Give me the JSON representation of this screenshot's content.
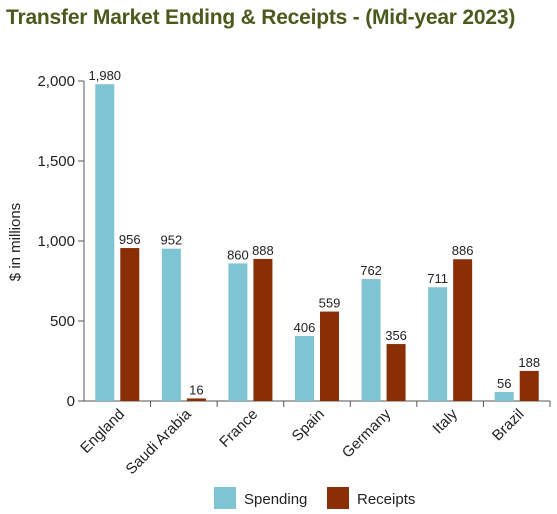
{
  "chart_data": {
    "type": "bar",
    "title": "Transfer Market Ending & Receipts - (Mid-year 2023)",
    "ylabel": "$ in millions",
    "xlabel": "",
    "ylim": [
      0,
      2000
    ],
    "yticks": [
      0,
      500,
      1000,
      1500,
      2000
    ],
    "ytick_labels": [
      "0",
      "500",
      "1,000",
      "1,500",
      "2,000"
    ],
    "categories": [
      "England",
      "Saudi Arabia",
      "France",
      "Spain",
      "Germany",
      "Italy",
      "Brazil"
    ],
    "series": [
      {
        "name": "Spending",
        "color": "#7ec4d3",
        "values": [
          1980,
          952,
          860,
          406,
          762,
          711,
          56
        ],
        "labels": [
          "1,980",
          "952",
          "860",
          "406",
          "762",
          "711",
          "56"
        ]
      },
      {
        "name": "Receipts",
        "color": "#8a2e05",
        "values": [
          956,
          16,
          888,
          559,
          356,
          886,
          188
        ],
        "labels": [
          "956",
          "16",
          "888",
          "559",
          "356",
          "886",
          "188"
        ]
      }
    ],
    "grid": false,
    "legend": "bottom"
  }
}
